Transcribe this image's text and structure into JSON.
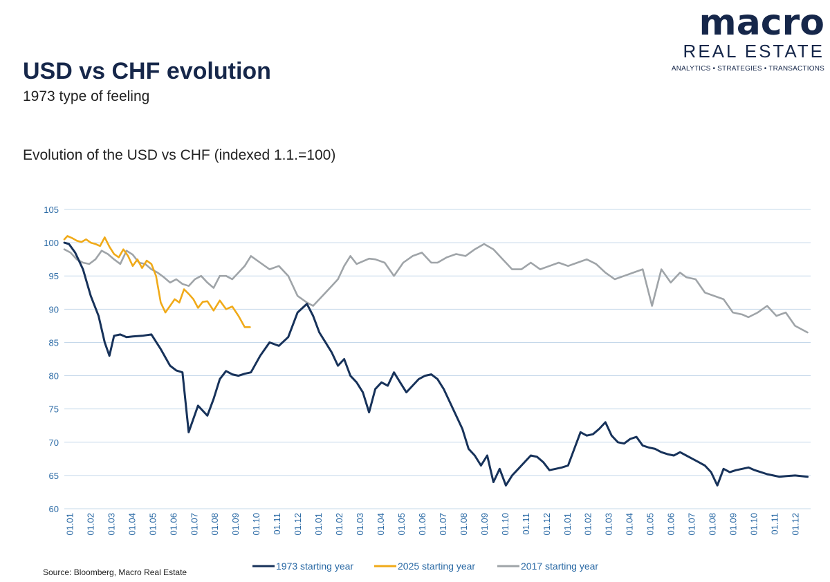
{
  "logo": {
    "word": "macro",
    "sub": "REAL ESTATE",
    "tagline": "ANALYTICS • STRATEGIES • TRANSACTIONS"
  },
  "header": {
    "title": "USD vs CHF evolution",
    "subtitle": "1973 type of feeling"
  },
  "source": "Source: Bloomberg, Macro Real Estate",
  "colors": {
    "navy": "#17325a",
    "orange": "#f0aa19",
    "gray": "#9fa4a8",
    "grid": "#c5d8ea",
    "axis_text": "#2b6aa5",
    "title": "#16274a"
  },
  "chart_data": {
    "type": "line",
    "title": "Evolution of the USD vs CHF (indexed 1.1.=100)",
    "xlabel": "",
    "ylabel": "",
    "ylim": [
      60,
      105
    ],
    "yticks": [
      60,
      65,
      70,
      75,
      80,
      85,
      90,
      95,
      100,
      105
    ],
    "xlim": [
      0,
      24
    ],
    "xticks": [
      "01.01",
      "01.02",
      "01.03",
      "01.04",
      "01.05",
      "01.06",
      "01.07",
      "01.08",
      "01.09",
      "01.10",
      "01.11",
      "01.12",
      "01.01",
      "01.02",
      "01.03",
      "01.04",
      "01.05",
      "01.06",
      "01.07",
      "01.08",
      "01.09",
      "01.10",
      "01.11",
      "01.12",
      "01.01",
      "01.02",
      "01.03",
      "01.04",
      "01.05",
      "01.06",
      "01.07",
      "01.08",
      "01.09",
      "01.10",
      "01.11",
      "01.12"
    ],
    "grid": true,
    "legend_position": "bottom",
    "series": [
      {
        "name": "1973 starting year",
        "color": "#17325a",
        "x": [
          0,
          0.15,
          0.35,
          0.6,
          0.85,
          1.1,
          1.3,
          1.45,
          1.6,
          1.8,
          2.0,
          2.2,
          2.5,
          2.8,
          3.1,
          3.4,
          3.6,
          3.8,
          4.0,
          4.3,
          4.6,
          4.8,
          5.0,
          5.2,
          5.4,
          5.6,
          5.8,
          6.0,
          6.3,
          6.6,
          6.9,
          7.2,
          7.5,
          7.8,
          8.0,
          8.2,
          8.4,
          8.6,
          8.8,
          9.0,
          9.2,
          9.4,
          9.6,
          9.8,
          10.0,
          10.2,
          10.4,
          10.6,
          10.8,
          11.0,
          11.2,
          11.4,
          11.6,
          11.8,
          12.0,
          12.2,
          12.4,
          12.6,
          12.8,
          13.0,
          13.2,
          13.4,
          13.6,
          13.8,
          14.0,
          14.2,
          14.4,
          14.6,
          14.8,
          15.0,
          15.2,
          15.4,
          15.6,
          15.8,
          16.0,
          16.2,
          16.4,
          16.6,
          16.8,
          17.0,
          17.2,
          17.4,
          17.6,
          17.8,
          18.0,
          18.2,
          18.4,
          18.6,
          18.8,
          19.0,
          19.2,
          19.4,
          19.6,
          19.8,
          20.0,
          20.2,
          20.4,
          20.6,
          20.8,
          21.0,
          21.2,
          21.4,
          21.6,
          21.8,
          22.0,
          22.2,
          22.4,
          22.6,
          22.8,
          23.0,
          23.2,
          23.5,
          23.9
        ],
        "values": [
          100,
          99.8,
          98.5,
          96,
          92,
          89,
          85,
          83,
          86,
          86.2,
          85.8,
          85.9,
          86,
          86.2,
          84,
          81.5,
          80.8,
          80.5,
          71.5,
          75.5,
          74,
          76.5,
          79.5,
          80.7,
          80.2,
          80,
          80.3,
          80.5,
          83,
          85,
          84.5,
          85.8,
          89.5,
          90.8,
          89,
          86.5,
          85,
          83.5,
          81.5,
          82.5,
          80,
          79,
          77.5,
          74.5,
          78,
          79,
          78.5,
          80.5,
          79,
          77.5,
          78.5,
          79.5,
          80,
          80.2,
          79.5,
          78,
          76,
          74,
          72,
          69,
          68,
          66.5,
          68,
          64,
          66,
          63.5,
          65,
          66,
          67,
          68,
          67.8,
          67,
          65.8,
          66,
          66.2,
          66.5,
          69,
          71.5,
          71,
          71.2,
          72,
          73,
          71,
          70,
          69.8,
          70.5,
          70.8,
          69.5,
          69.2,
          69,
          68.5,
          68.2,
          68,
          68.5,
          68,
          67.5,
          67,
          66.5,
          65.5,
          63.5,
          66,
          65.5,
          65.8,
          66,
          66.2,
          65.8,
          65.5,
          65.2,
          65,
          64.8,
          64.9,
          65,
          64.8
        ]
      },
      {
        "name": "2025 starting year",
        "color": "#f0aa19",
        "x": [
          0,
          0.1,
          0.25,
          0.4,
          0.55,
          0.7,
          0.85,
          1.0,
          1.15,
          1.3,
          1.45,
          1.6,
          1.75,
          1.9,
          2.05,
          2.2,
          2.35,
          2.5,
          2.65,
          2.8,
          2.95,
          3.1,
          3.25,
          3.4,
          3.55,
          3.7,
          3.85,
          4.0,
          4.15,
          4.3,
          4.45,
          4.6,
          4.8,
          5.0,
          5.2,
          5.4,
          5.6,
          5.8,
          5.97
        ],
        "values": [
          100.5,
          101,
          100.7,
          100.3,
          100.1,
          100.5,
          100,
          99.8,
          99.5,
          100.8,
          99.4,
          98.3,
          97.8,
          99,
          98,
          96.5,
          97.5,
          96.2,
          97.3,
          96.8,
          95,
          91,
          89.5,
          90.5,
          91.5,
          91,
          93,
          92.3,
          91.5,
          90.2,
          91.1,
          91.2,
          89.8,
          91.3,
          90,
          90.4,
          89,
          87.3,
          87.3
        ]
      },
      {
        "name": "2017 starting year",
        "color": "#9fa4a8",
        "x": [
          0,
          0.2,
          0.4,
          0.6,
          0.8,
          1.0,
          1.2,
          1.4,
          1.6,
          1.8,
          2.0,
          2.2,
          2.4,
          2.6,
          2.8,
          3.0,
          3.2,
          3.4,
          3.6,
          3.8,
          4.0,
          4.2,
          4.4,
          4.6,
          4.8,
          5.0,
          5.2,
          5.4,
          5.6,
          5.8,
          6.0,
          6.3,
          6.6,
          6.9,
          7.2,
          7.5,
          7.8,
          8.0,
          8.2,
          8.4,
          8.6,
          8.8,
          9.0,
          9.2,
          9.4,
          9.6,
          9.8,
          10.0,
          10.3,
          10.6,
          10.9,
          11.2,
          11.5,
          11.8,
          12.0,
          12.3,
          12.6,
          12.9,
          13.2,
          13.5,
          13.8,
          14.1,
          14.4,
          14.7,
          15.0,
          15.3,
          15.6,
          15.9,
          16.2,
          16.5,
          16.8,
          17.1,
          17.4,
          17.7,
          18.0,
          18.3,
          18.6,
          18.9,
          19.2,
          19.5,
          19.8,
          20.0,
          20.3,
          20.6,
          20.9,
          21.2,
          21.5,
          21.8,
          22.0,
          22.3,
          22.6,
          22.9,
          23.2,
          23.5,
          23.9
        ],
        "values": [
          99,
          98.5,
          97.5,
          97,
          96.8,
          97.5,
          98.8,
          98.3,
          97.5,
          96.8,
          98.8,
          98.2,
          97,
          96.8,
          96,
          95.5,
          94.8,
          94,
          94.5,
          93.8,
          93.5,
          94.5,
          95,
          94,
          93.2,
          95,
          95,
          94.5,
          95.5,
          96.5,
          98,
          97,
          96,
          96.5,
          95,
          92,
          91,
          90.5,
          91.5,
          92.5,
          93.5,
          94.5,
          96.5,
          98,
          96.8,
          97.2,
          97.6,
          97.5,
          97,
          95,
          97,
          98,
          98.5,
          97,
          97,
          97.8,
          98.3,
          98,
          99,
          99.8,
          99,
          97.5,
          96,
          96,
          97,
          96,
          96.5,
          97,
          96.5,
          97,
          97.5,
          96.8,
          95.5,
          94.5,
          95,
          95.5,
          96,
          90.5,
          96,
          94,
          95.5,
          94.8,
          94.5,
          92.5,
          92,
          91.5,
          89.5,
          89.2,
          88.8,
          89.5,
          90.5,
          89,
          89.5,
          87.5,
          86.5
        ]
      }
    ]
  }
}
